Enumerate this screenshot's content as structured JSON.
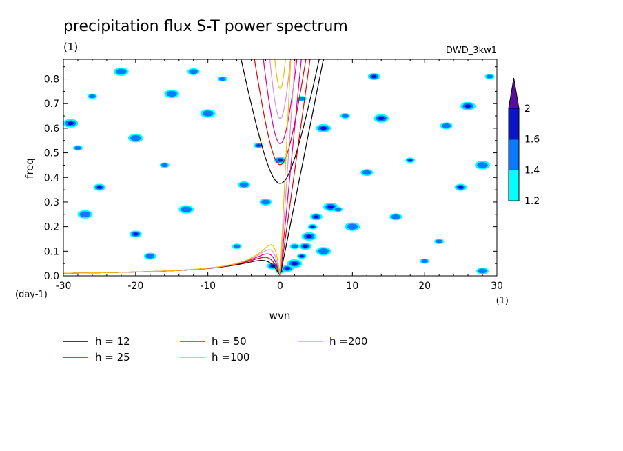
{
  "chart_data": {
    "type": "heatmap",
    "title": "precipitation flux S-T power spectrum",
    "subtitle": "(1)",
    "dataset": "DWD_3kw1",
    "xlabel": "wvn",
    "ylabel": "freq",
    "x_unit": "(1)",
    "y_unit": "(day-1)",
    "xlim": [
      -30,
      30
    ],
    "ylim": [
      0,
      0.88
    ],
    "x_ticks": [
      -30,
      -20,
      -10,
      0,
      10,
      20,
      30
    ],
    "x_tick_labels": [
      "-30",
      "-20",
      "-10",
      "0",
      "10",
      "20",
      "30"
    ],
    "y_ticks": [
      0,
      0.1,
      0.2,
      0.3,
      0.4,
      0.5,
      0.6,
      0.7,
      0.8
    ],
    "y_tick_labels": [
      "0.0",
      "0.1",
      "0.2",
      "0.3",
      "0.4",
      "0.5",
      "0.6",
      "0.7",
      "0.8"
    ],
    "colorbar": {
      "levels": [
        1.2,
        1.4,
        1.6,
        2
      ],
      "labels": [
        "1.2",
        "1.4",
        "1.6",
        "2"
      ],
      "colors": [
        "#00ffff",
        "#0a78ff",
        "#0a14c8",
        "#5a0aa0"
      ],
      "extend": "max"
    },
    "dispersion_curves": [
      {
        "label": "h = 12",
        "h": 12,
        "color": "#000000"
      },
      {
        "label": "h = 25",
        "h": 25,
        "color": "#e00000"
      },
      {
        "label": "h = 50",
        "h": 50,
        "color": "#d000a0"
      },
      {
        "label": "h =100",
        "h": 100,
        "color": "#e090e0"
      },
      {
        "label": "h =200",
        "h": 200,
        "color": "#f0c000"
      }
    ],
    "spectrum_patches": [
      {
        "x": 0,
        "y": 0.02,
        "level": 2
      },
      {
        "x": 1,
        "y": 0.03,
        "level": 3
      },
      {
        "x": 2,
        "y": 0.05,
        "level": 2
      },
      {
        "x": 3,
        "y": 0.08,
        "level": 3
      },
      {
        "x": 3.5,
        "y": 0.12,
        "level": 2
      },
      {
        "x": 4,
        "y": 0.16,
        "level": 3
      },
      {
        "x": 4.5,
        "y": 0.2,
        "level": 2
      },
      {
        "x": 5,
        "y": 0.24,
        "level": 2
      },
      {
        "x": 7,
        "y": 0.28,
        "level": 2
      },
      {
        "x": 8,
        "y": 0.27,
        "level": 1
      },
      {
        "x": -1,
        "y": 0.04,
        "level": 2
      },
      {
        "x": 6,
        "y": 0.1,
        "level": 1
      },
      {
        "x": 2,
        "y": 0.12,
        "level": 1
      },
      {
        "x": -25,
        "y": 0.36,
        "level": 2
      },
      {
        "x": -22,
        "y": 0.83,
        "level": 1
      },
      {
        "x": -26,
        "y": 0.73,
        "level": 1
      },
      {
        "x": -20,
        "y": 0.17,
        "level": 2
      },
      {
        "x": -15,
        "y": 0.74,
        "level": 1
      },
      {
        "x": -16,
        "y": 0.45,
        "level": 1
      },
      {
        "x": -12,
        "y": 0.83,
        "level": 1
      },
      {
        "x": -10,
        "y": 0.66,
        "level": 1
      },
      {
        "x": -3,
        "y": 0.53,
        "level": 2
      },
      {
        "x": 0,
        "y": 0.47,
        "level": 2
      },
      {
        "x": 6,
        "y": 0.6,
        "level": 2
      },
      {
        "x": 9,
        "y": 0.65,
        "level": 1
      },
      {
        "x": 13,
        "y": 0.81,
        "level": 2
      },
      {
        "x": 14,
        "y": 0.64,
        "level": 2
      },
      {
        "x": 18,
        "y": 0.47,
        "level": 2
      },
      {
        "x": 23,
        "y": 0.61,
        "level": 1
      },
      {
        "x": 26,
        "y": 0.69,
        "level": 2
      },
      {
        "x": 29,
        "y": 0.81,
        "level": 1
      },
      {
        "x": 25,
        "y": 0.36,
        "level": 2
      },
      {
        "x": 28,
        "y": 0.45,
        "level": 1
      },
      {
        "x": 20,
        "y": 0.06,
        "level": 1
      },
      {
        "x": 28,
        "y": 0.02,
        "level": 1
      },
      {
        "x": -29,
        "y": 0.62,
        "level": 2
      },
      {
        "x": -28,
        "y": 0.52,
        "level": 1
      },
      {
        "x": -5,
        "y": 0.37,
        "level": 1
      },
      {
        "x": -13,
        "y": 0.27,
        "level": 1
      },
      {
        "x": -8,
        "y": 0.8,
        "level": 1
      },
      {
        "x": 16,
        "y": 0.24,
        "level": 1
      },
      {
        "x": 10,
        "y": 0.2,
        "level": 1
      },
      {
        "x": 22,
        "y": 0.14,
        "level": 1
      },
      {
        "x": -18,
        "y": 0.08,
        "level": 1
      },
      {
        "x": -27,
        "y": 0.25,
        "level": 1
      },
      {
        "x": -6,
        "y": 0.12,
        "level": 1
      },
      {
        "x": 12,
        "y": 0.42,
        "level": 1
      },
      {
        "x": -20,
        "y": 0.56,
        "level": 1
      },
      {
        "x": 3,
        "y": 0.72,
        "level": 1
      },
      {
        "x": -2,
        "y": 0.3,
        "level": 1
      }
    ]
  },
  "legend_items": [
    {
      "label": "h = 12",
      "color": "#000000"
    },
    {
      "label": "h = 25",
      "color": "#e00000"
    },
    {
      "label": "h = 50",
      "color": "#d000a0"
    },
    {
      "label": "h =100",
      "color": "#e090e0"
    },
    {
      "label": "h =200",
      "color": "#f0c000"
    }
  ]
}
